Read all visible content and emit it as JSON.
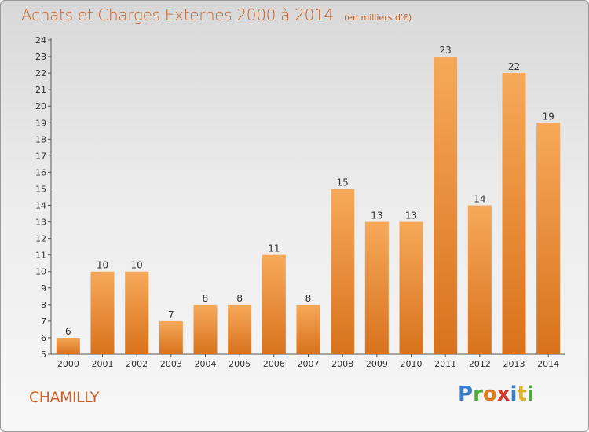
{
  "header": {
    "title": "Achats et Charges Externes 2000 à 2014",
    "unit": "(en milliers d'€)"
  },
  "commune": "CHAMILLY",
  "logo": {
    "text": "Proxiti",
    "colors": [
      "#3a7fcb",
      "#4caa3a",
      "#e07a1c",
      "#d83a2a",
      "#3a7fcb",
      "#e0b020",
      "#4caa3a"
    ]
  },
  "colors": {
    "bar_light": "#f6a95a",
    "bar_dark": "#d9721c",
    "title": "#c8622a"
  },
  "chart_data": {
    "type": "bar",
    "categories": [
      "2000",
      "2001",
      "2002",
      "2003",
      "2004",
      "2005",
      "2006",
      "2007",
      "2008",
      "2009",
      "2010",
      "2011",
      "2012",
      "2013",
      "2014"
    ],
    "values": [
      6,
      10,
      10,
      7,
      8,
      8,
      11,
      8,
      15,
      13,
      13,
      23,
      14,
      22,
      19
    ],
    "title": "Achats et Charges Externes 2000 à 2014",
    "xlabel": "",
    "ylabel": "",
    "ylim": [
      5,
      24
    ],
    "yticks": [
      5,
      6,
      7,
      8,
      9,
      10,
      11,
      12,
      13,
      14,
      15,
      16,
      17,
      18,
      19,
      20,
      21,
      22,
      23,
      24
    ],
    "data_labels": true,
    "grid": false
  }
}
